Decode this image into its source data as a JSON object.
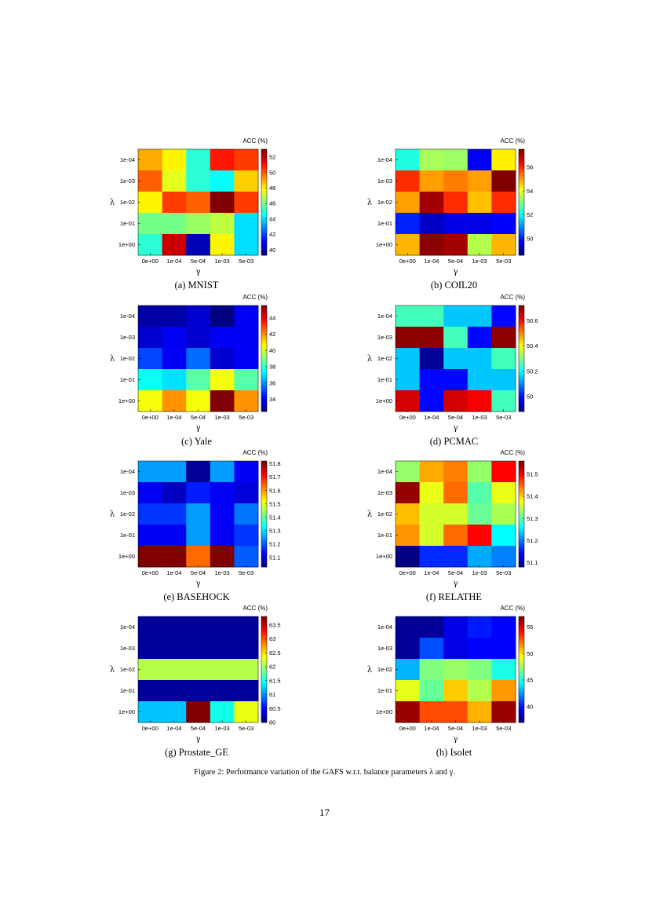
{
  "figure_caption": "Figure 2: Performance variation of the GAFS w.r.t. balance parameters λ and γ.",
  "page_number": "17",
  "chart_data": [
    {
      "type": "heatmap",
      "caption": "(a) MNIST",
      "colorbar_title": "ACC (%)",
      "xlabel": "γ",
      "ylabel": "λ",
      "x_categories": [
        "0e+00",
        "1e-04",
        "5e-04",
        "1e-03",
        "5e-03"
      ],
      "y_categories": [
        "1e-04",
        "1e-03",
        "1e-02",
        "1e-01",
        "1e+00"
      ],
      "clim": [
        39.3,
        53
      ],
      "colorbar_ticks": [
        "40",
        "42",
        "44",
        "46",
        "48",
        "50",
        "52"
      ],
      "values": [
        [
          49,
          48,
          45,
          51,
          50.5
        ],
        [
          50,
          47.5,
          45,
          44.5,
          48.5
        ],
        [
          48,
          50.5,
          50,
          53,
          50.5
        ],
        [
          46,
          46,
          46.5,
          47,
          44
        ],
        [
          45,
          52,
          40,
          48,
          44
        ]
      ]
    },
    {
      "type": "heatmap",
      "caption": "(b) COIL20",
      "colorbar_title": "ACC (%)",
      "xlabel": "γ",
      "ylabel": "λ",
      "x_categories": [
        "0e+00",
        "1e-04",
        "5e-04",
        "1e-03",
        "5e-03"
      ],
      "y_categories": [
        "1e-04",
        "1e-03",
        "1e-02",
        "1e-01",
        "1e+00"
      ],
      "clim": [
        48.6,
        57.5
      ],
      "colorbar_ticks": [
        "50",
        "52",
        "54",
        "56"
      ],
      "values": [
        [
          52.2,
          53.4,
          53.3,
          49.6,
          54.3
        ],
        [
          56,
          55,
          55.3,
          55,
          57.5
        ],
        [
          55,
          57.2,
          56,
          54.7,
          56
        ],
        [
          50,
          49.2,
          49.5,
          49.5,
          49.7
        ],
        [
          54.8,
          57.4,
          57.2,
          53.5,
          54.8
        ]
      ]
    },
    {
      "type": "heatmap",
      "caption": "(c) Yale",
      "colorbar_title": "ACC (%)",
      "xlabel": "γ",
      "ylabel": "λ",
      "x_categories": [
        "0e+00",
        "1e-04",
        "5e-04",
        "1e-03",
        "5e-03"
      ],
      "y_categories": [
        "1e-04",
        "1e-03",
        "1e-02",
        "1e-01",
        "1e+00"
      ],
      "clim": [
        32.5,
        45.5
      ],
      "colorbar_ticks": [
        "34",
        "36",
        "38",
        "40",
        "42",
        "44"
      ],
      "values": [
        [
          33,
          33,
          33.5,
          32.5,
          34
        ],
        [
          33.5,
          34,
          33.5,
          34,
          34
        ],
        [
          35,
          34,
          35.5,
          33.5,
          34
        ],
        [
          37.5,
          37,
          38.5,
          40.5,
          38.5
        ],
        [
          40.5,
          42,
          40.5,
          45.5,
          42
        ]
      ]
    },
    {
      "type": "heatmap",
      "caption": "(d) PCMAC",
      "colorbar_title": "ACC (%)",
      "xlabel": "γ",
      "ylabel": "λ",
      "x_categories": [
        "0e+00",
        "1e-04",
        "5e-04",
        "1e-03",
        "5e-03"
      ],
      "y_categories": [
        "1e-04",
        "1e-03",
        "1e-02",
        "1e-01",
        "1e+00"
      ],
      "clim": [
        49.88,
        50.72
      ],
      "colorbar_ticks": [
        "50",
        "50.2",
        "50.4",
        "50.6"
      ],
      "values": [
        [
          50.25,
          50.25,
          50.15,
          50.15,
          49.99
        ],
        [
          50.71,
          50.71,
          50.25,
          49.99,
          50.71
        ],
        [
          50.15,
          49.9,
          50.15,
          50.15,
          50.25
        ],
        [
          50.15,
          49.99,
          49.99,
          50.15,
          50.15
        ],
        [
          50.65,
          49.99,
          50.65,
          50.62,
          50.25
        ]
      ]
    },
    {
      "type": "heatmap",
      "caption": "(e) BASEHOCK",
      "colorbar_title": "ACC (%)",
      "xlabel": "γ",
      "ylabel": "λ",
      "x_categories": [
        "0e+00",
        "1e-04",
        "5e-04",
        "1e-03",
        "5e-03"
      ],
      "y_categories": [
        "1e-04",
        "1e-03",
        "1e-02",
        "1e-01",
        "1e+00"
      ],
      "clim": [
        51.03,
        51.82
      ],
      "colorbar_ticks": [
        "51.1",
        "51.2",
        "51.3",
        "51.4",
        "51.5",
        "51.6",
        "51.7",
        "51.8"
      ],
      "values": [
        [
          51.25,
          51.25,
          51.05,
          51.25,
          51.12
        ],
        [
          51.12,
          51.08,
          51.15,
          51.12,
          51.1
        ],
        [
          51.17,
          51.17,
          51.25,
          51.12,
          51.22
        ],
        [
          51.12,
          51.12,
          51.25,
          51.12,
          51.17
        ],
        [
          51.82,
          51.82,
          51.64,
          51.82,
          51.2
        ]
      ]
    },
    {
      "type": "heatmap",
      "caption": "(f) RELATHE",
      "colorbar_title": "ACC (%)",
      "xlabel": "γ",
      "ylabel": "λ",
      "x_categories": [
        "0e+00",
        "1e-04",
        "5e-04",
        "1e-03",
        "5e-03"
      ],
      "y_categories": [
        "1e-04",
        "1e-03",
        "1e-02",
        "1e-01",
        "1e+00"
      ],
      "clim": [
        51.08,
        51.56
      ],
      "colorbar_ticks": [
        "51.1",
        "51.2",
        "51.3",
        "51.4",
        "51.5"
      ],
      "values": [
        [
          51.33,
          51.42,
          51.44,
          51.33,
          51.5
        ],
        [
          51.55,
          51.37,
          51.45,
          51.3,
          51.37
        ],
        [
          51.41,
          51.36,
          51.36,
          51.31,
          51.34
        ],
        [
          51.43,
          51.36,
          51.45,
          51.5,
          51.26
        ],
        [
          51.08,
          51.16,
          51.16,
          51.22,
          51.2
        ]
      ]
    },
    {
      "type": "heatmap",
      "caption": "(g) Prostate_GE",
      "colorbar_title": "ACC (%)",
      "xlabel": "γ",
      "ylabel": "λ",
      "x_categories": [
        "0e+00",
        "1e-04",
        "5e-04",
        "1e-03",
        "5e-03"
      ],
      "y_categories": [
        "1e-04",
        "1e-03",
        "1e-02",
        "1e-01",
        "1e+00"
      ],
      "clim": [
        60,
        63.8
      ],
      "colorbar_ticks": [
        "60",
        "60.5",
        "61",
        "61.5",
        "62",
        "62.5",
        "63",
        "63.5"
      ],
      "values": [
        [
          60.1,
          60.1,
          60.1,
          60.1,
          60.1
        ],
        [
          60.1,
          60.1,
          60.1,
          60.1,
          60.1
        ],
        [
          62.1,
          62.1,
          62.1,
          62.1,
          62.1
        ],
        [
          60.1,
          60.1,
          60.1,
          60.1,
          60.1
        ],
        [
          61.2,
          61.2,
          63.8,
          61.5,
          62.3
        ]
      ]
    },
    {
      "type": "heatmap",
      "caption": "(h) Isolet",
      "colorbar_title": "ACC (%)",
      "xlabel": "γ",
      "ylabel": "λ",
      "x_categories": [
        "0e+00",
        "1e-04",
        "5e-04",
        "1e-03",
        "5e-03"
      ],
      "y_categories": [
        "1e-04",
        "1e-03",
        "1e-02",
        "1e-01",
        "1e+00"
      ],
      "clim": [
        37,
        57
      ],
      "colorbar_ticks": [
        "40",
        "45",
        "50",
        "55"
      ],
      "values": [
        [
          37.5,
          37.5,
          39,
          40,
          39.5
        ],
        [
          37.5,
          41,
          39,
          39.5,
          39.5
        ],
        [
          43,
          47,
          47.5,
          47,
          45
        ],
        [
          49,
          46.5,
          50.5,
          48,
          51.5
        ],
        [
          56.5,
          53,
          53,
          51,
          56.5
        ]
      ]
    }
  ]
}
